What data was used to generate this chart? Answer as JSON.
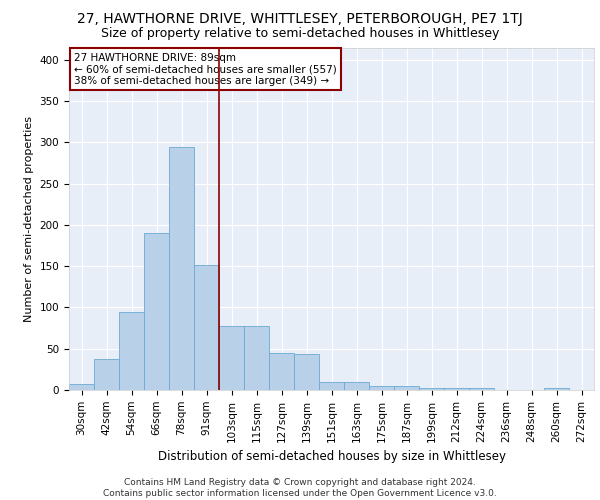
{
  "title": "27, HAWTHORNE DRIVE, WHITTLESEY, PETERBOROUGH, PE7 1TJ",
  "subtitle": "Size of property relative to semi-detached houses in Whittlesey",
  "xlabel": "Distribution of semi-detached houses by size in Whittlesey",
  "ylabel": "Number of semi-detached properties",
  "categories": [
    "30sqm",
    "42sqm",
    "54sqm",
    "66sqm",
    "78sqm",
    "91sqm",
    "103sqm",
    "115sqm",
    "127sqm",
    "139sqm",
    "151sqm",
    "163sqm",
    "175sqm",
    "187sqm",
    "199sqm",
    "212sqm",
    "224sqm",
    "236sqm",
    "248sqm",
    "260sqm",
    "272sqm"
  ],
  "values": [
    7,
    38,
    94,
    190,
    295,
    152,
    78,
    78,
    45,
    44,
    10,
    10,
    5,
    5,
    3,
    3,
    2,
    0,
    0,
    2,
    0
  ],
  "bar_color": "#b8d0e8",
  "bar_edge_color": "#6aaad4",
  "vline_x_index": 5,
  "vline_color": "#8b0000",
  "annotation_text": "27 HAWTHORNE DRIVE: 89sqm\n← 60% of semi-detached houses are smaller (557)\n38% of semi-detached houses are larger (349) →",
  "annotation_box_color": "white",
  "annotation_border_color": "#8b0000",
  "ylim": [
    0,
    415
  ],
  "yticks": [
    0,
    50,
    100,
    150,
    200,
    250,
    300,
    350,
    400
  ],
  "background_color": "#e8eef8",
  "footer_text": "Contains HM Land Registry data © Crown copyright and database right 2024.\nContains public sector information licensed under the Open Government Licence v3.0.",
  "title_fontsize": 10,
  "subtitle_fontsize": 9,
  "xlabel_fontsize": 8.5,
  "ylabel_fontsize": 8,
  "tick_fontsize": 7.5,
  "footer_fontsize": 6.5
}
